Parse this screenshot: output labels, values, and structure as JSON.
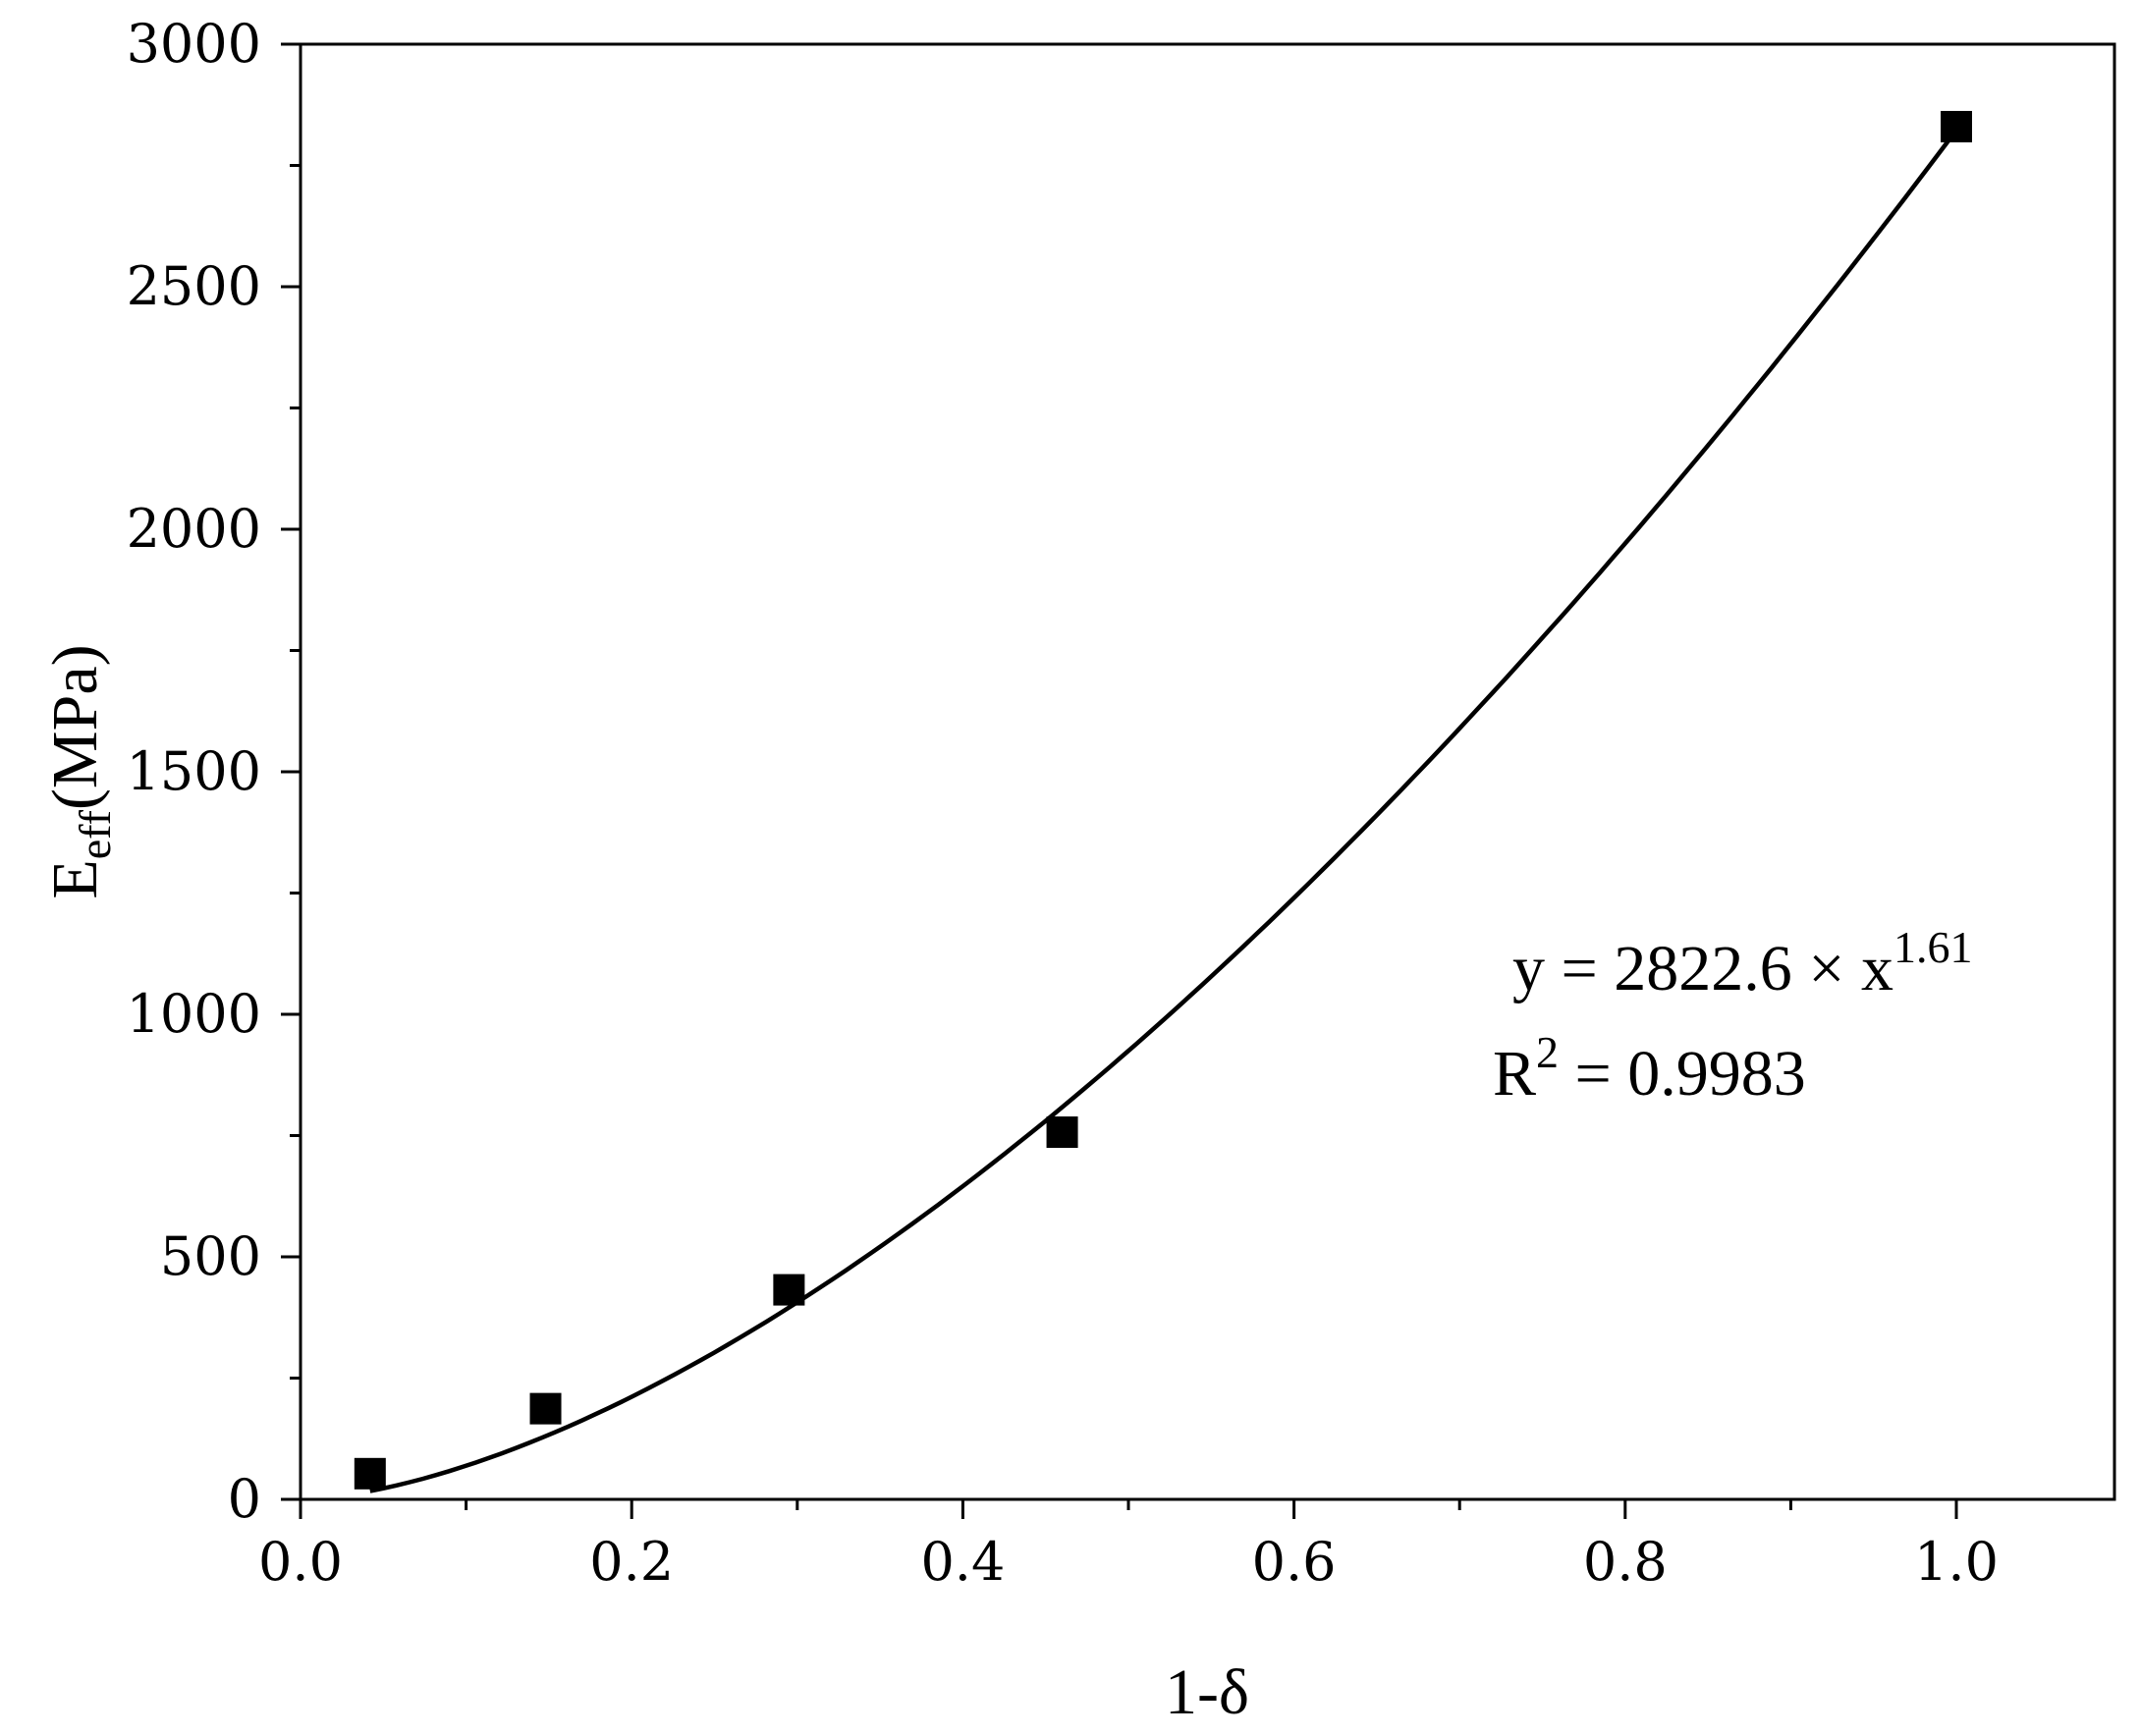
{
  "chart_data": {
    "type": "scatter",
    "xlabel": "1-δ",
    "ylabel_main": "E",
    "ylabel_sub": "eff",
    "ylabel_unit": "(MPa)",
    "xlim": [
      0.0,
      1.1
    ],
    "ylim": [
      0,
      3000
    ],
    "x_ticks": [
      0.0,
      0.2,
      0.4,
      0.6,
      0.8,
      1.0
    ],
    "x_tick_labels": [
      "0.0",
      "0.2",
      "0.4",
      "0.6",
      "0.8",
      "1.0"
    ],
    "y_ticks": [
      0,
      500,
      1000,
      1500,
      2000,
      2500,
      3000
    ],
    "y_tick_labels": [
      "0",
      "500",
      "1000",
      "1500",
      "2000",
      "2500",
      "3000"
    ],
    "grid": false,
    "series": [
      {
        "marker": "square",
        "color": "#000000",
        "x": [
          0.042,
          0.148,
          0.295,
          0.46,
          1.0
        ],
        "y": [
          53,
          187,
          432,
          757,
          2830
        ]
      }
    ],
    "fit": {
      "type": "power",
      "a": 2822.6,
      "b": 1.61,
      "x_range": [
        0.042,
        1.0
      ],
      "color": "#000000",
      "equation_prefix": "y = 2822.6 × x",
      "equation_exponent": "1.61",
      "r2_prefix": "R",
      "r2_exponent": "2",
      "r2_suffix": " = 0.9983"
    }
  }
}
